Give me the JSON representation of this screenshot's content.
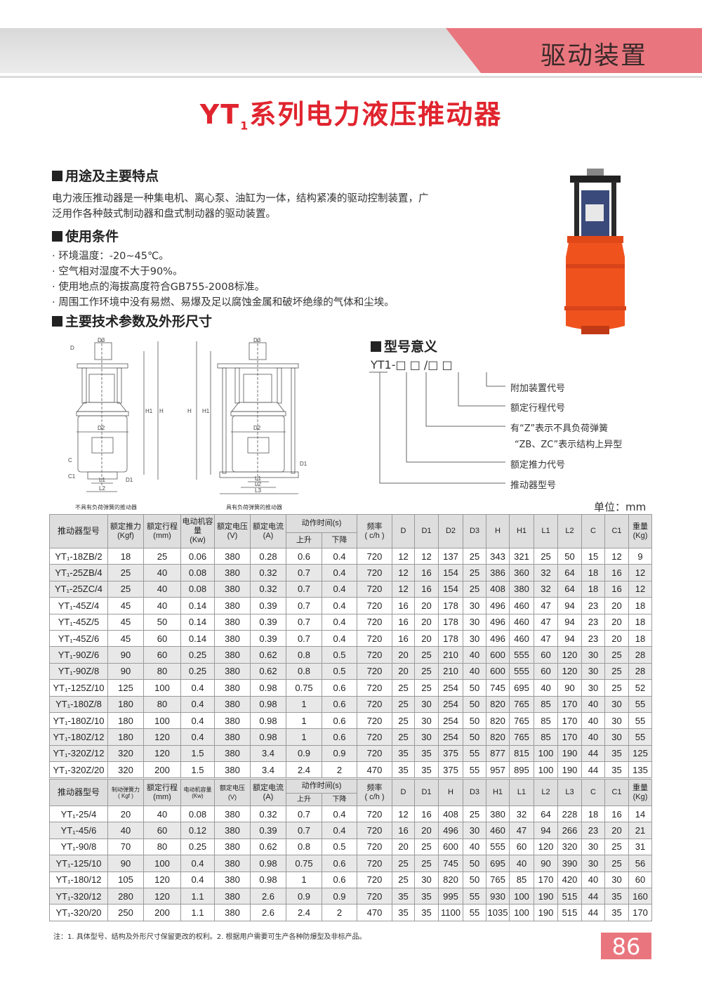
{
  "header": {
    "section": "驱动装置",
    "title_prefix": "YT",
    "title_sub": "1",
    "title_suffix": "系列电力液压推动器"
  },
  "sec1": {
    "heading": "用途及主要特点",
    "text": [
      "电力液压推动器是一种集电机、离心泵、油缸为一体，结构紧凑的驱动控制装置，广",
      "泛用作各种鼓式制动器和盘式制动器的驱动装置。"
    ]
  },
  "sec2": {
    "heading": "使用条件",
    "items": [
      "· 环境温度：-20~45℃。",
      "· 空气相对湿度不大于90%。",
      "· 使用地点的海拔高度符合GB755-2008标准。",
      "· 周围工作环境中没有易燃、易爆及足以腐蚀金属和破坏绝缘的气体和尘埃。"
    ]
  },
  "sec3": {
    "heading": "主要技术参数及外形尺寸"
  },
  "diagrams": {
    "caption_left": "不具有负荷弹簧的推动器",
    "caption_right": "具有负荷弹簧的推动器",
    "labels": {
      "D": "D",
      "D1": "D1",
      "D2": "D2",
      "D3": "D3",
      "H": "H",
      "H1": "H1",
      "L1": "L1",
      "L2": "L2",
      "L3": "L3",
      "C": "C",
      "C1": "C1"
    }
  },
  "model_meaning": {
    "heading": "型号意义",
    "code": "YT1-□ □ /□  □",
    "labels": [
      "附加装置代号",
      "额定行程代号",
      "有“Z”表示不具负荷弹簧",
      "“ZB、ZC”表示结构上异型",
      "额定推力代号",
      "推动器型号"
    ]
  },
  "unit": "单位：mm",
  "table1": {
    "headers": {
      "model": "推动器型号",
      "thrust": "额定推力",
      "thrust_unit": "(Kgf)",
      "stroke": "额定行程",
      "stroke_unit": "(mm)",
      "motor": "电动机容量",
      "motor_unit": "(Kw)",
      "voltage": "额定电压",
      "voltage_unit": "(V)",
      "current": "额定电流",
      "current_unit": "(A)",
      "time": "动作时间(s)",
      "up": "上升",
      "down": "下降",
      "freq": "频率",
      "freq_unit": "( c/h )",
      "D": "D",
      "D1": "D1",
      "D2": "D2",
      "D3": "D3",
      "H": "H",
      "H1": "H1",
      "L1": "L1",
      "L2": "L2",
      "C": "C",
      "C1": "C1",
      "weight": "重量",
      "weight_unit": "(Kg)"
    },
    "rows": [
      [
        "YT₁-18ZB/2",
        "18",
        "25",
        "0.06",
        "380",
        "0.28",
        "0.6",
        "0.4",
        "720",
        "12",
        "12",
        "137",
        "25",
        "343",
        "321",
        "25",
        "50",
        "15",
        "12",
        "9"
      ],
      [
        "YT₁-25ZB/4",
        "25",
        "40",
        "0.08",
        "380",
        "0.32",
        "0.7",
        "0.4",
        "720",
        "12",
        "16",
        "154",
        "25",
        "386",
        "360",
        "32",
        "64",
        "18",
        "16",
        "12"
      ],
      [
        "YT₁-25ZC/4",
        "25",
        "40",
        "0.08",
        "380",
        "0.32",
        "0.7",
        "0.4",
        "720",
        "12",
        "16",
        "154",
        "25",
        "408",
        "380",
        "32",
        "64",
        "18",
        "16",
        "12"
      ],
      [
        "YT₁-45Z/4",
        "45",
        "40",
        "0.14",
        "380",
        "0.39",
        "0.7",
        "0.4",
        "720",
        "16",
        "20",
        "178",
        "30",
        "496",
        "460",
        "47",
        "94",
        "23",
        "20",
        "18"
      ],
      [
        "YT₁-45Z/5",
        "45",
        "50",
        "0.14",
        "380",
        "0.39",
        "0.7",
        "0.4",
        "720",
        "16",
        "20",
        "178",
        "30",
        "496",
        "460",
        "47",
        "94",
        "23",
        "20",
        "18"
      ],
      [
        "YT₁-45Z/6",
        "45",
        "60",
        "0.14",
        "380",
        "0.39",
        "0.7",
        "0.4",
        "720",
        "16",
        "20",
        "178",
        "30",
        "496",
        "460",
        "47",
        "94",
        "23",
        "20",
        "18"
      ],
      [
        "YT₁-90Z/6",
        "90",
        "60",
        "0.25",
        "380",
        "0.62",
        "0.8",
        "0.5",
        "720",
        "20",
        "25",
        "210",
        "40",
        "600",
        "555",
        "60",
        "120",
        "30",
        "25",
        "28"
      ],
      [
        "YT₁-90Z/8",
        "90",
        "80",
        "0.25",
        "380",
        "0.62",
        "0.8",
        "0.5",
        "720",
        "20",
        "25",
        "210",
        "40",
        "600",
        "555",
        "60",
        "120",
        "30",
        "25",
        "28"
      ],
      [
        "YT₁-125Z/10",
        "125",
        "100",
        "0.4",
        "380",
        "0.98",
        "0.75",
        "0.6",
        "720",
        "25",
        "25",
        "254",
        "50",
        "745",
        "695",
        "40",
        "90",
        "30",
        "25",
        "52"
      ],
      [
        "YT₁-180Z/8",
        "180",
        "80",
        "0.4",
        "380",
        "0.98",
        "1",
        "0.6",
        "720",
        "25",
        "30",
        "254",
        "50",
        "820",
        "765",
        "85",
        "170",
        "40",
        "30",
        "55"
      ],
      [
        "YT₁-180Z/10",
        "180",
        "100",
        "0.4",
        "380",
        "0.98",
        "1",
        "0.6",
        "720",
        "25",
        "30",
        "254",
        "50",
        "820",
        "765",
        "85",
        "170",
        "40",
        "30",
        "55"
      ],
      [
        "YT₁-180Z/12",
        "180",
        "120",
        "0.4",
        "380",
        "0.98",
        "1",
        "0.6",
        "720",
        "25",
        "30",
        "254",
        "50",
        "820",
        "765",
        "85",
        "170",
        "40",
        "30",
        "55"
      ],
      [
        "YT₁-320Z/12",
        "320",
        "120",
        "1.5",
        "380",
        "3.4",
        "0.9",
        "0.9",
        "720",
        "35",
        "35",
        "375",
        "55",
        "877",
        "815",
        "100",
        "190",
        "44",
        "35",
        "125"
      ],
      [
        "YT₁-320Z/20",
        "320",
        "200",
        "1.5",
        "380",
        "3.4",
        "2.4",
        "2",
        "470",
        "35",
        "35",
        "375",
        "55",
        "957",
        "895",
        "100",
        "190",
        "44",
        "35",
        "135"
      ]
    ]
  },
  "table2": {
    "headers": {
      "model": "推动器型号",
      "thrust": "制动弹簧力",
      "thrust_unit": "( Kgf )",
      "stroke": "额定行程",
      "stroke_unit": "(mm)",
      "motor": "电动机容量",
      "motor_unit": "(Kw)",
      "voltage": "额定电压",
      "voltage_unit": "(V)",
      "current": "额定电流",
      "current_unit": "(A)",
      "time": "动作时间(s)",
      "up": "上升",
      "down": "下降",
      "freq": "频率",
      "freq_unit": "( c/h )",
      "D": "D",
      "D1": "D1",
      "H": "H",
      "D3": "D3",
      "H1": "H1",
      "L1": "L1",
      "L2": "L2",
      "L3": "L3",
      "C": "C",
      "C1": "C1",
      "weight": "重量",
      "weight_unit": "(Kg)"
    },
    "rows": [
      [
        "YT₁-25/4",
        "20",
        "40",
        "0.08",
        "380",
        "0.32",
        "0.7",
        "0.4",
        "720",
        "12",
        "16",
        "408",
        "25",
        "380",
        "32",
        "64",
        "228",
        "18",
        "16",
        "14"
      ],
      [
        "YT₁-45/6",
        "40",
        "60",
        "0.12",
        "380",
        "0.39",
        "0.7",
        "0.4",
        "720",
        "16",
        "20",
        "496",
        "30",
        "460",
        "47",
        "94",
        "266",
        "23",
        "20",
        "21"
      ],
      [
        "YT₁-90/8",
        "70",
        "80",
        "0.25",
        "380",
        "0.62",
        "0.8",
        "0.5",
        "720",
        "20",
        "25",
        "600",
        "40",
        "555",
        "60",
        "120",
        "320",
        "30",
        "25",
        "31"
      ],
      [
        "YT₁-125/10",
        "90",
        "100",
        "0.4",
        "380",
        "0.98",
        "0.75",
        "0.6",
        "720",
        "25",
        "25",
        "745",
        "50",
        "695",
        "40",
        "90",
        "390",
        "30",
        "25",
        "56"
      ],
      [
        "YT₁-180/12",
        "105",
        "120",
        "0.4",
        "380",
        "0.98",
        "1",
        "0.6",
        "720",
        "25",
        "30",
        "820",
        "50",
        "765",
        "85",
        "170",
        "420",
        "40",
        "30",
        "60"
      ],
      [
        "YT₁-320/12",
        "280",
        "120",
        "1.1",
        "380",
        "2.6",
        "0.9",
        "0.9",
        "720",
        "35",
        "35",
        "995",
        "55",
        "930",
        "100",
        "190",
        "515",
        "44",
        "35",
        "160"
      ],
      [
        "YT₁-320/20",
        "250",
        "200",
        "1.1",
        "380",
        "2.6",
        "2.4",
        "2",
        "470",
        "35",
        "35",
        "1100",
        "55",
        "1035",
        "100",
        "190",
        "515",
        "44",
        "35",
        "170"
      ]
    ]
  },
  "note": "注：1. 具体型号、结构及外形尺寸保留更改的权利。2. 根据用户需要可生产各种防爆型及非标产品。",
  "page_number": "86",
  "colors": {
    "accent_red": "#e0242e",
    "band_pink": "#e9767e",
    "product_orange": "#f0521e"
  }
}
